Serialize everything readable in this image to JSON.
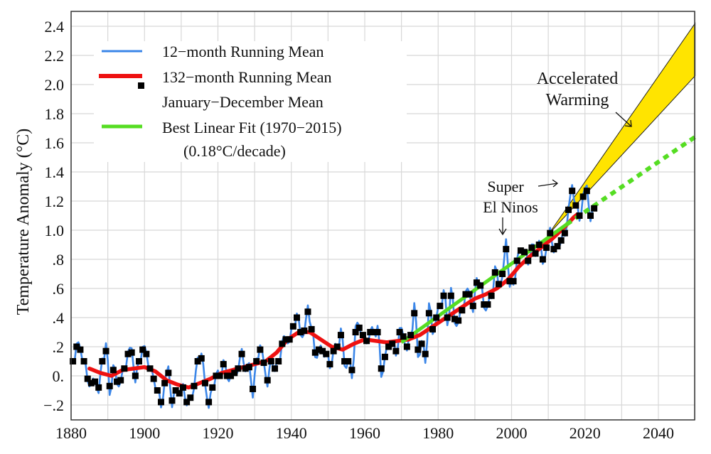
{
  "chart_data": {
    "type": "line",
    "title": "",
    "xlabel": "",
    "ylabel": "Temperature Anomaly (°C)",
    "xlim": [
      1880,
      2050
    ],
    "ylim": [
      -0.26,
      2.5
    ],
    "grid": true,
    "x_ticks": [
      1880,
      1900,
      1920,
      1940,
      1960,
      1980,
      2000,
      2020,
      2040
    ],
    "x_tick_labels": [
      "1880",
      "1900",
      "1920",
      "1940",
      "1960",
      "1980",
      "2000",
      "2020",
      "2040"
    ],
    "y_ticks": [
      -0.2,
      0,
      0.2,
      0.4,
      0.6,
      0.8,
      1.0,
      1.2,
      1.4,
      1.6,
      1.8,
      2.0,
      2.2,
      2.4
    ],
    "y_tick_labels": [
      "−.2",
      "0.",
      ".2",
      ".4",
      ".6",
      ".8",
      "1.0",
      "1.2",
      "1.4",
      "1.6",
      "1.8",
      "2.0",
      "2.2",
      "2.4"
    ],
    "legend": {
      "placement": "top-left",
      "entries": [
        "12−month Running Mean",
        "132−month Running Mean",
        "January−December Mean",
        "Best Linear Fit (1970−2015)"
      ],
      "note": "(0.18°C/decade)"
    },
    "colors": {
      "blue": "#3b86e8",
      "red": "#ee1111",
      "black": "#000000",
      "green": "#55dd22",
      "yellow": "#ffe400"
    },
    "annual_mean": {
      "start_year": 1880,
      "values": [
        0.1,
        0.2,
        0.18,
        0.1,
        -0.02,
        -0.05,
        -0.04,
        -0.08,
        0.1,
        0.17,
        -0.07,
        0.04,
        -0.04,
        -0.03,
        0.05,
        0.15,
        0.16,
        0.0,
        0.1,
        0.18,
        0.15,
        0.05,
        -0.02,
        -0.1,
        -0.18,
        -0.05,
        0.02,
        -0.17,
        -0.1,
        -0.12,
        -0.08,
        -0.18,
        -0.15,
        -0.07,
        0.1,
        0.12,
        -0.05,
        -0.18,
        -0.08,
        0.0,
        0.0,
        0.08,
        0.0,
        0.0,
        0.02,
        0.05,
        0.15,
        0.05,
        0.06,
        -0.09,
        0.1,
        0.18,
        0.09,
        -0.03,
        0.1,
        0.05,
        0.1,
        0.22,
        0.25,
        0.25,
        0.34,
        0.4,
        0.3,
        0.31,
        0.44,
        0.32,
        0.16,
        0.18,
        0.17,
        0.15,
        0.08,
        0.17,
        0.2,
        0.28,
        0.1,
        0.1,
        0.04,
        0.3,
        0.33,
        0.28,
        0.24,
        0.3,
        0.3,
        0.3,
        0.05,
        0.13,
        0.2,
        0.22,
        0.17,
        0.3,
        0.27,
        0.2,
        0.28,
        0.43,
        0.18,
        0.22,
        0.15,
        0.43,
        0.32,
        0.4,
        0.48,
        0.55,
        0.4,
        0.55,
        0.39,
        0.38,
        0.45,
        0.56,
        0.56,
        0.48,
        0.64,
        0.62,
        0.49,
        0.49,
        0.55,
        0.71,
        0.63,
        0.7,
        0.87,
        0.65,
        0.65,
        0.79,
        0.86,
        0.85,
        0.79,
        0.88,
        0.84,
        0.9,
        0.8,
        0.88,
        0.98,
        0.87,
        0.89,
        0.93,
        0.98,
        1.14,
        1.27,
        1.17,
        1.1,
        1.23,
        1.27,
        1.1,
        1.15
      ]
    },
    "running_132": [
      [
        1885,
        0.05
      ],
      [
        1888,
        0.02
      ],
      [
        1891,
        0.0
      ],
      [
        1894,
        0.04
      ],
      [
        1897,
        0.05
      ],
      [
        1900,
        0.06
      ],
      [
        1903,
        0.03
      ],
      [
        1906,
        -0.03
      ],
      [
        1909,
        -0.06
      ],
      [
        1912,
        -0.08
      ],
      [
        1915,
        -0.05
      ],
      [
        1918,
        -0.02
      ],
      [
        1921,
        0.02
      ],
      [
        1924,
        0.04
      ],
      [
        1927,
        0.06
      ],
      [
        1930,
        0.08
      ],
      [
        1933,
        0.1
      ],
      [
        1936,
        0.16
      ],
      [
        1939,
        0.25
      ],
      [
        1942,
        0.3
      ],
      [
        1945,
        0.3
      ],
      [
        1948,
        0.25
      ],
      [
        1951,
        0.2
      ],
      [
        1954,
        0.18
      ],
      [
        1957,
        0.22
      ],
      [
        1960,
        0.25
      ],
      [
        1963,
        0.24
      ],
      [
        1966,
        0.23
      ],
      [
        1969,
        0.24
      ],
      [
        1972,
        0.25
      ],
      [
        1975,
        0.28
      ],
      [
        1978,
        0.33
      ],
      [
        1981,
        0.38
      ],
      [
        1984,
        0.43
      ],
      [
        1987,
        0.48
      ],
      [
        1990,
        0.53
      ],
      [
        1993,
        0.56
      ],
      [
        1996,
        0.6
      ],
      [
        1999,
        0.66
      ],
      [
        2002,
        0.75
      ],
      [
        2005,
        0.82
      ],
      [
        2008,
        0.88
      ],
      [
        2011,
        0.94
      ],
      [
        2014,
        1.01
      ],
      [
        2017,
        1.09
      ],
      [
        2018,
        1.11
      ]
    ],
    "linear_fit": {
      "start": [
        1970,
        0.23
      ],
      "end": [
        2015,
        1.04
      ],
      "extension_end": [
        2050,
        1.64
      ]
    },
    "accelerated_band": {
      "start": [
        2010,
        0.97
      ],
      "upper_end": [
        2050,
        2.42
      ],
      "lower_end": [
        2050,
        2.06
      ]
    },
    "annotations": {
      "accelerated": [
        "Accelerated",
        "Warming"
      ],
      "el_nino": [
        "Super",
        "El Ninos"
      ]
    }
  }
}
